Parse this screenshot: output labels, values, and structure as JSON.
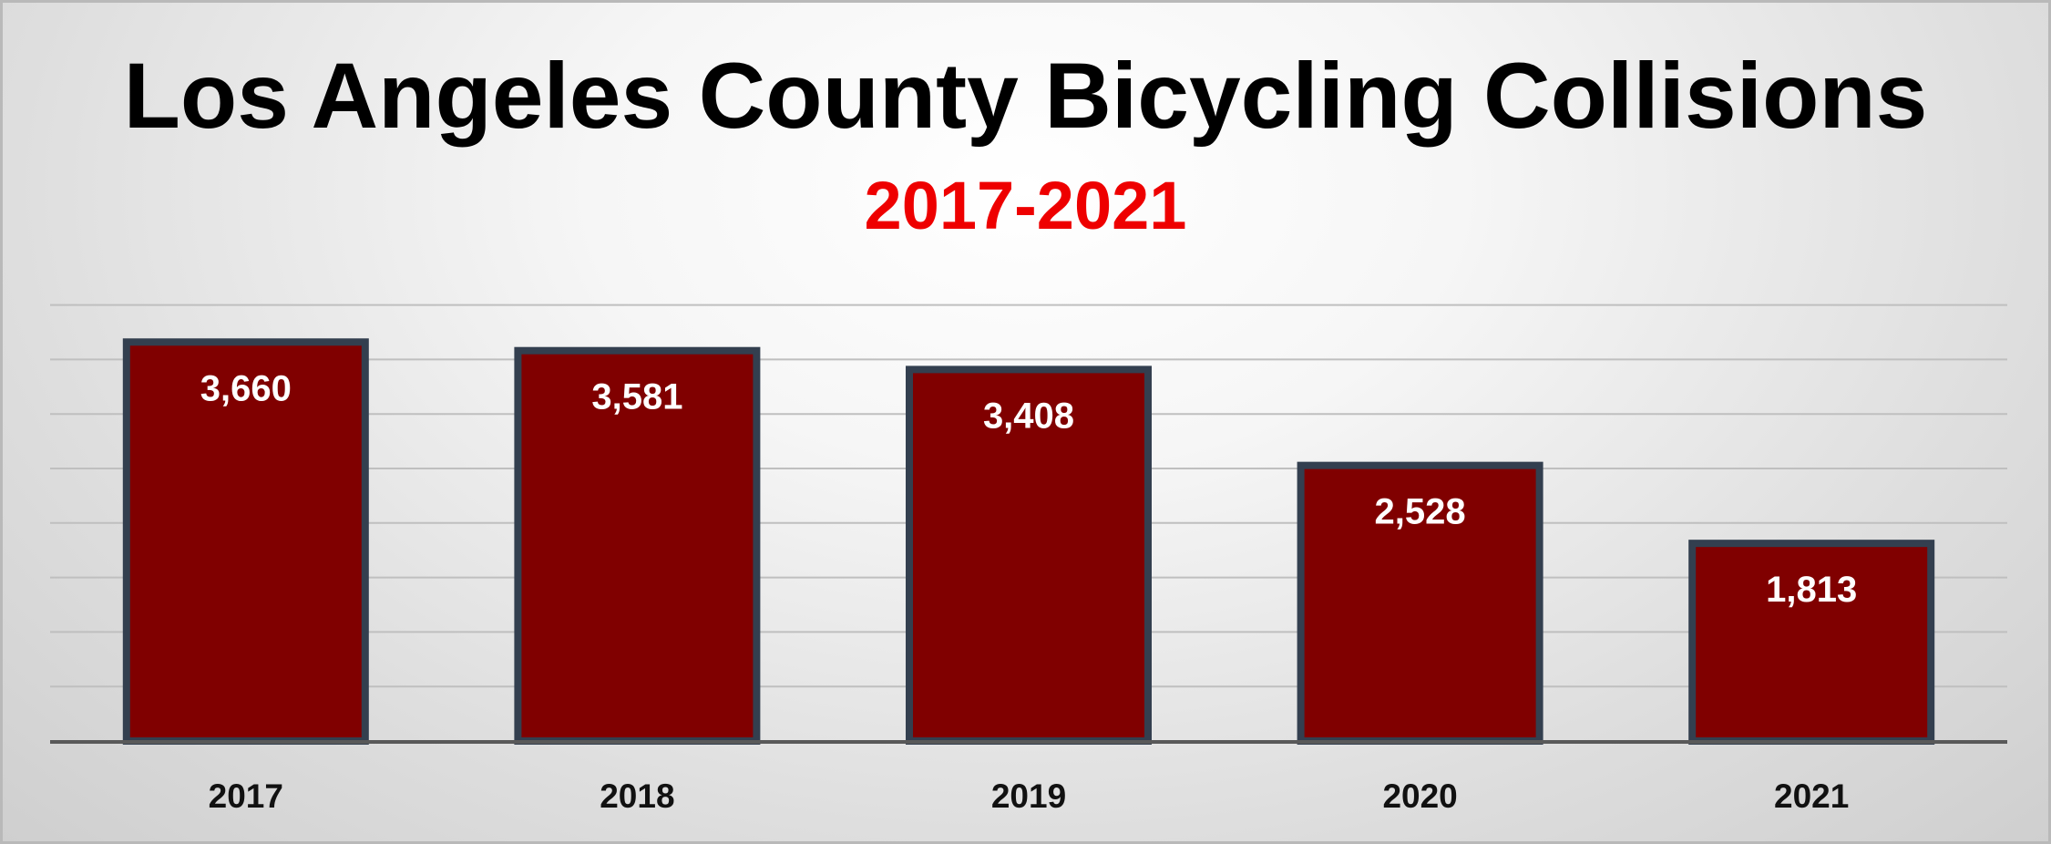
{
  "colors": {
    "bar_fill": "#800000",
    "bar_stroke": "#333f4f",
    "title": "#000000",
    "subtitle": "#ee0000",
    "gridline": "#bfbfbf",
    "axis": "#595959",
    "value_label": "#ffffff"
  },
  "chart_data": {
    "type": "bar",
    "title": "Los Angeles County Bicycling Collisions",
    "subtitle": "2017-2021",
    "categories": [
      "2017",
      "2018",
      "2019",
      "2020",
      "2021"
    ],
    "values": [
      3660,
      3581,
      3408,
      2528,
      1813
    ],
    "value_labels": [
      "3,660",
      "3,581",
      "3,408",
      "2,528",
      "1,813"
    ],
    "xlabel": "",
    "ylabel": "",
    "ylim": [
      0,
      4000
    ],
    "y_gridline_step": 500,
    "y_tick_labels_shown": false,
    "grid": true,
    "legend": "none"
  }
}
